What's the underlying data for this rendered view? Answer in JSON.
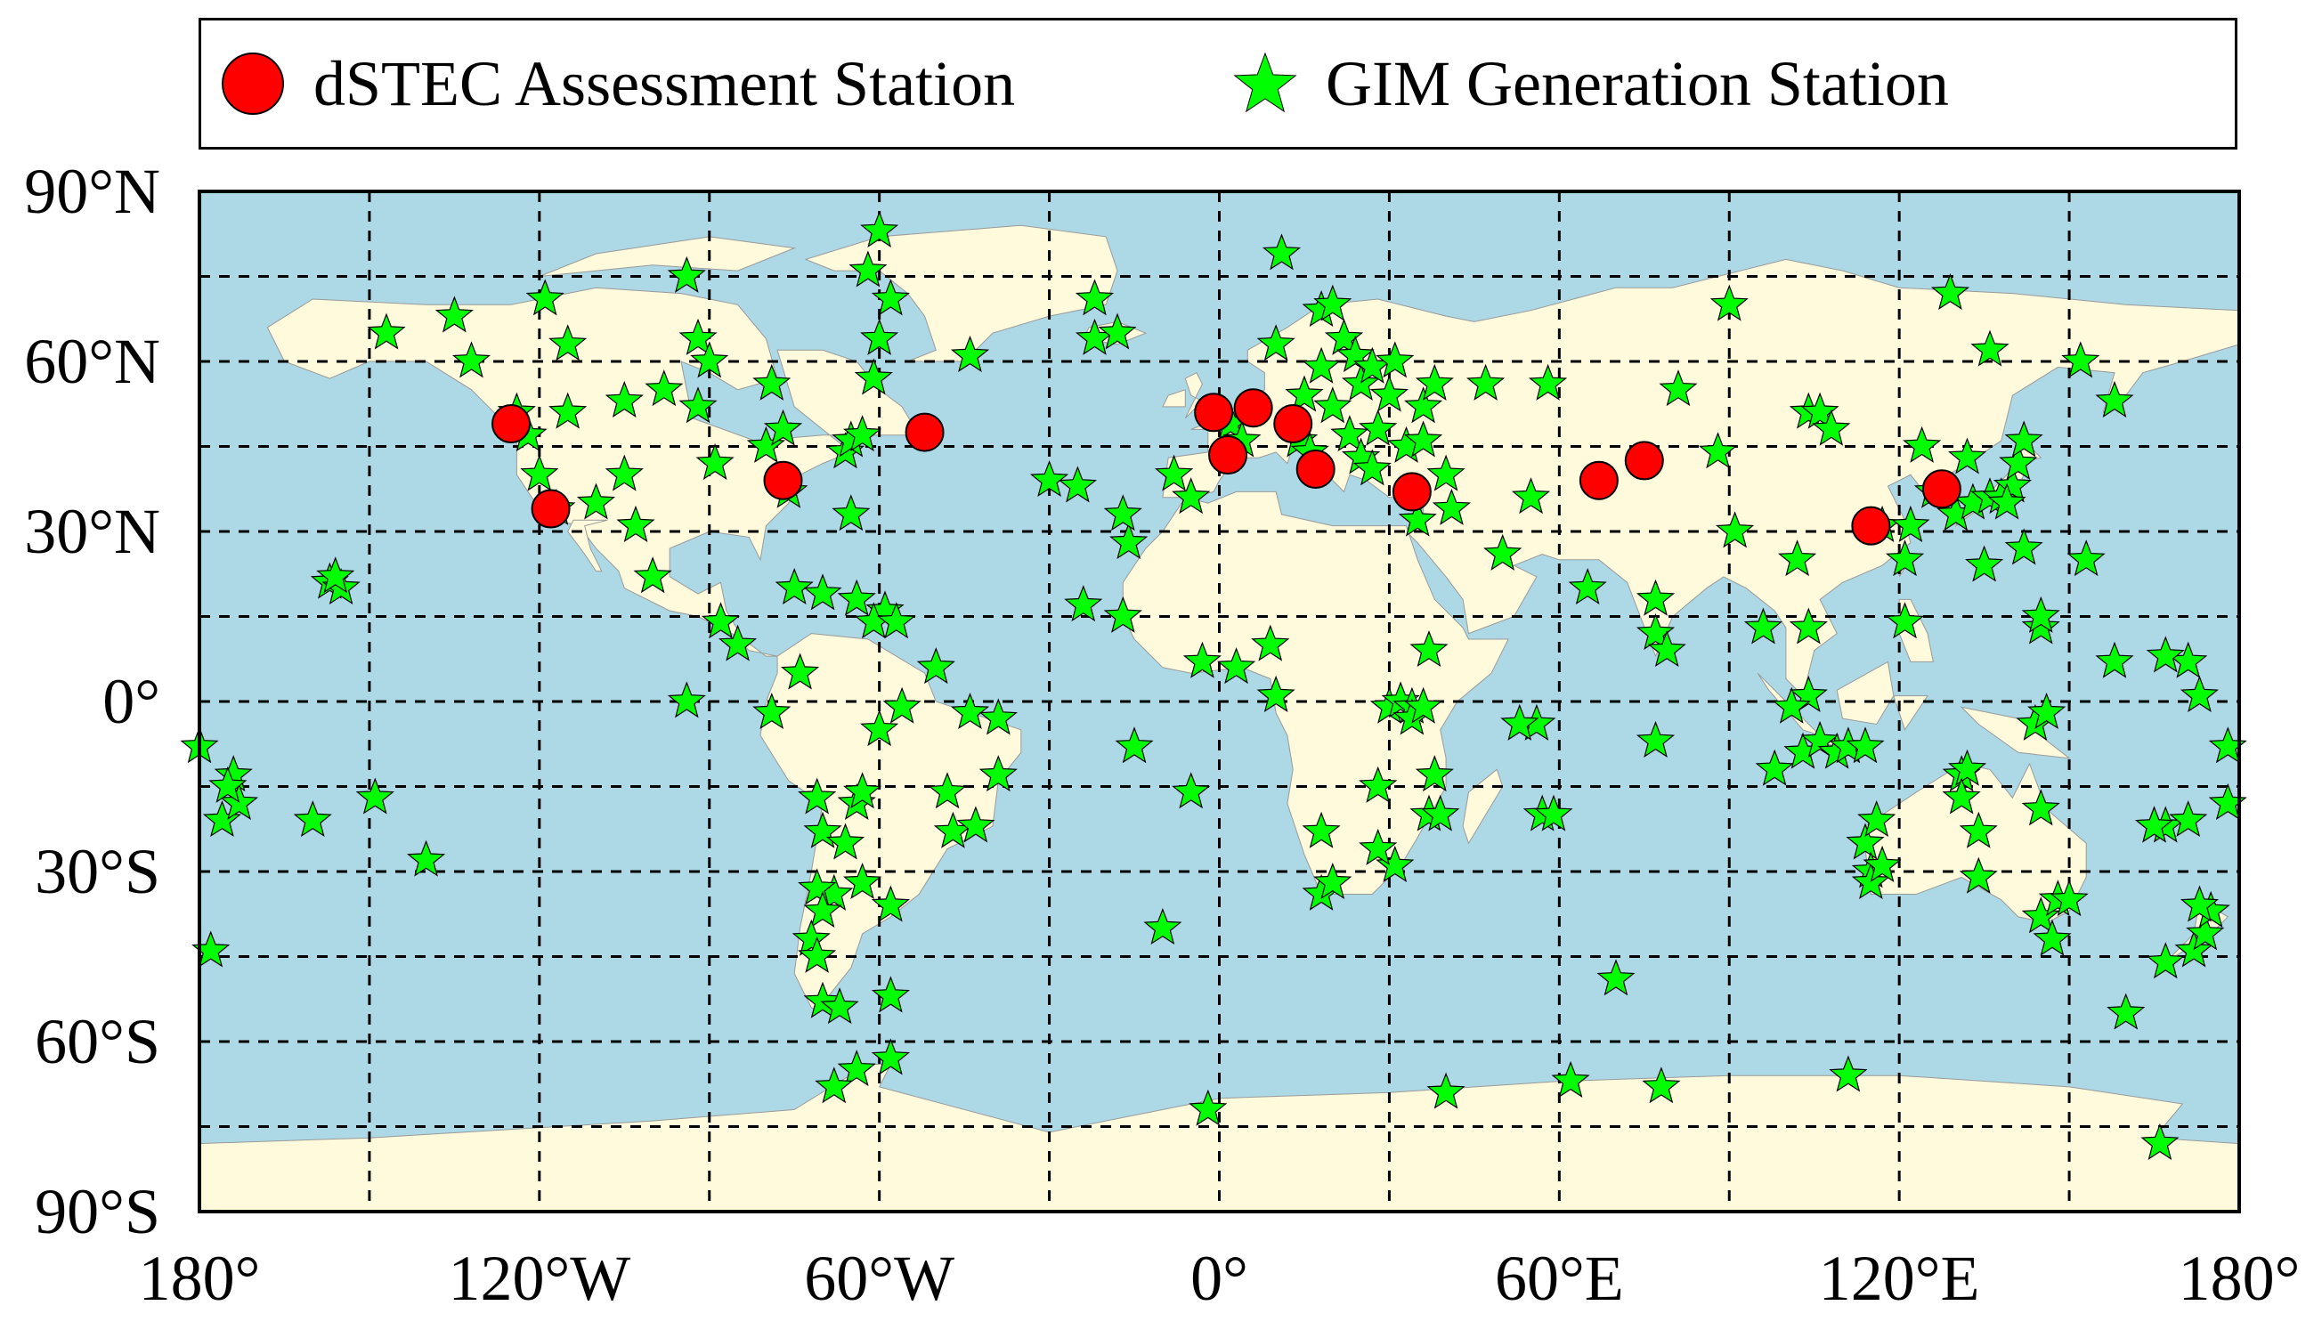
{
  "legend": {
    "assessment_label": "dSTEC Assessment Station",
    "generation_label": "GIM Generation Station",
    "assessment_color": "#ff0000",
    "generation_color": "#00ff00"
  },
  "map": {
    "ocean_color": "#add8e6",
    "land_color": "#fffadc",
    "grid": "dashed",
    "lon_range": [
      -180,
      180
    ],
    "lat_range": [
      -90,
      90
    ],
    "x_ticks": [
      {
        "lon": -180,
        "label": "180°"
      },
      {
        "lon": -120,
        "label": "120°W"
      },
      {
        "lon": -60,
        "label": "60°W"
      },
      {
        "lon": 0,
        "label": "0°"
      },
      {
        "lon": 60,
        "label": "60°E"
      },
      {
        "lon": 120,
        "label": "120°E"
      },
      {
        "lon": 180,
        "label": "180°"
      }
    ],
    "y_ticks": [
      {
        "lat": 90,
        "label": "90°N"
      },
      {
        "lat": 60,
        "label": "60°N"
      },
      {
        "lat": 30,
        "label": "30°N"
      },
      {
        "lat": 0,
        "label": "0°"
      },
      {
        "lat": -30,
        "label": "30°S"
      },
      {
        "lat": -60,
        "label": "60°S"
      },
      {
        "lat": -90,
        "label": "90°S"
      }
    ],
    "grid_lons": [
      -150,
      -120,
      -90,
      -60,
      -30,
      0,
      30,
      60,
      90,
      120,
      150
    ],
    "grid_lats": [
      75,
      60,
      45,
      30,
      15,
      0,
      -15,
      -30,
      -45,
      -60,
      -75
    ]
  },
  "chart_data": {
    "type": "scatter",
    "series": [
      {
        "name": "dSTEC Assessment Station",
        "marker": "circle",
        "points": [
          [
            -125,
            49
          ],
          [
            -118,
            34
          ],
          [
            -77,
            39
          ],
          [
            -52,
            47.5
          ],
          [
            -1,
            51
          ],
          [
            6,
            51.8
          ],
          [
            13,
            49
          ],
          [
            1.5,
            43.5
          ],
          [
            17,
            41
          ],
          [
            34,
            37
          ],
          [
            67,
            39
          ],
          [
            75,
            42.5
          ],
          [
            115,
            31
          ],
          [
            127.5,
            37.5
          ]
        ]
      },
      {
        "name": "GIM Generation Station",
        "marker": "star",
        "points": [
          [
            -180,
            -8
          ],
          [
            -176,
            -21
          ],
          [
            -174,
            -13
          ],
          [
            -173,
            -18
          ],
          [
            -175,
            -15
          ],
          [
            -178,
            -44
          ],
          [
            -157,
            21
          ],
          [
            -155,
            20
          ],
          [
            -156,
            22
          ],
          [
            -160,
            -21
          ],
          [
            -149,
            -17
          ],
          [
            -140,
            -28
          ],
          [
            -147,
            65
          ],
          [
            -135,
            68
          ],
          [
            -132,
            60
          ],
          [
            -124,
            51
          ],
          [
            -122,
            47
          ],
          [
            -120,
            40
          ],
          [
            -117,
            34
          ],
          [
            -119,
            71
          ],
          [
            -115,
            63
          ],
          [
            -115,
            51
          ],
          [
            -110,
            35
          ],
          [
            -105,
            53
          ],
          [
            -105,
            40
          ],
          [
            -103,
            31
          ],
          [
            -100,
            22
          ],
          [
            -98,
            55
          ],
          [
            -94,
            75
          ],
          [
            -92,
            64
          ],
          [
            -92,
            52
          ],
          [
            -90,
            60
          ],
          [
            -89,
            42
          ],
          [
            -88,
            14
          ],
          [
            -85,
            10
          ],
          [
            -94,
            0
          ],
          [
            -80,
            45
          ],
          [
            -79,
            56
          ],
          [
            -77,
            48
          ],
          [
            -76,
            37
          ],
          [
            -75,
            20
          ],
          [
            -74,
            5
          ],
          [
            -79,
            -2
          ],
          [
            -70,
            19
          ],
          [
            -66,
            44
          ],
          [
            -64,
            18
          ],
          [
            -65,
            46
          ],
          [
            -63,
            47
          ],
          [
            -62,
            76
          ],
          [
            -60,
            64
          ],
          [
            -58,
            71
          ],
          [
            -61,
            57
          ],
          [
            -59,
            16
          ],
          [
            -61,
            14
          ],
          [
            -65,
            33
          ],
          [
            -60,
            83
          ],
          [
            -57,
            14
          ],
          [
            -56,
            -1
          ],
          [
            -50,
            6
          ],
          [
            -44,
            -2
          ],
          [
            -39,
            -3
          ],
          [
            -39,
            -13
          ],
          [
            -48,
            -16
          ],
          [
            -47,
            -23
          ],
          [
            -43,
            -22
          ],
          [
            -60,
            -5
          ],
          [
            -64,
            -18
          ],
          [
            -63,
            -16
          ],
          [
            -71,
            -17
          ],
          [
            -70,
            -23
          ],
          [
            -68,
            -34
          ],
          [
            -66,
            -25
          ],
          [
            -63,
            -32
          ],
          [
            -71,
            -33
          ],
          [
            -70,
            -37
          ],
          [
            -72,
            -42
          ],
          [
            -71,
            -45
          ],
          [
            -70,
            -53
          ],
          [
            -67,
            -54
          ],
          [
            -58,
            -36
          ],
          [
            -58,
            -52
          ],
          [
            -64,
            -65
          ],
          [
            -58,
            -63
          ],
          [
            -68,
            -68
          ],
          [
            -44,
            61
          ],
          [
            -22,
            64
          ],
          [
            -18,
            65
          ],
          [
            -22,
            71
          ],
          [
            -30,
            39
          ],
          [
            -25,
            38
          ],
          [
            -16,
            28
          ],
          [
            -17,
            33
          ],
          [
            -24,
            17
          ],
          [
            -17,
            15
          ],
          [
            -15,
            -8
          ],
          [
            -5,
            -16
          ],
          [
            -10,
            -40
          ],
          [
            -3,
            7
          ],
          [
            3,
            6
          ],
          [
            9,
            10
          ],
          [
            10,
            1
          ],
          [
            -2,
            -72
          ],
          [
            -8,
            40
          ],
          [
            -5,
            36
          ],
          [
            2,
            49
          ],
          [
            4,
            46
          ],
          [
            10,
            63
          ],
          [
            11,
            79
          ],
          [
            15,
            54
          ],
          [
            18,
            59
          ],
          [
            18,
            69
          ],
          [
            20,
            70
          ],
          [
            22,
            64
          ],
          [
            24,
            61
          ],
          [
            25,
            56
          ],
          [
            27,
            59
          ],
          [
            28,
            48
          ],
          [
            14,
            46
          ],
          [
            16,
            44
          ],
          [
            20,
            52
          ],
          [
            23,
            47
          ],
          [
            25,
            43
          ],
          [
            27,
            41
          ],
          [
            31,
            60
          ],
          [
            30,
            54
          ],
          [
            33,
            45
          ],
          [
            36,
            52
          ],
          [
            38,
            56
          ],
          [
            36,
            46
          ],
          [
            40,
            40
          ],
          [
            35,
            32
          ],
          [
            31,
            -29
          ],
          [
            28,
            -26
          ],
          [
            30,
            -1
          ],
          [
            32,
            0
          ],
          [
            34,
            -1
          ],
          [
            37,
            9
          ],
          [
            34,
            -3
          ],
          [
            36,
            -1
          ],
          [
            38,
            -13
          ],
          [
            28,
            -15
          ],
          [
            18,
            -23
          ],
          [
            18,
            -34
          ],
          [
            20,
            -32
          ],
          [
            37,
            -20
          ],
          [
            39,
            -20
          ],
          [
            41,
            34
          ],
          [
            47,
            56
          ],
          [
            50,
            26
          ],
          [
            55,
            36
          ],
          [
            56,
            -4
          ],
          [
            57,
            -20
          ],
          [
            59,
            -20
          ],
          [
            53,
            -4
          ],
          [
            65,
            20
          ],
          [
            58,
            56
          ],
          [
            77,
            -7
          ],
          [
            70,
            -49
          ],
          [
            78,
            -68
          ],
          [
            62,
            -67
          ],
          [
            40,
            -69
          ],
          [
            81,
            55
          ],
          [
            90,
            70
          ],
          [
            88,
            44
          ],
          [
            77,
            18
          ],
          [
            77,
            12
          ],
          [
            79,
            9
          ],
          [
            91,
            30
          ],
          [
            96,
            13
          ],
          [
            98,
            -12
          ],
          [
            104,
            51
          ],
          [
            106,
            51
          ],
          [
            108,
            48
          ],
          [
            102,
            25
          ],
          [
            104,
            13
          ],
          [
            104,
            1
          ],
          [
            101,
            -1
          ],
          [
            103,
            -9
          ],
          [
            106,
            -7
          ],
          [
            109,
            -9
          ],
          [
            111,
            -8
          ],
          [
            114,
            -8
          ],
          [
            117,
            31
          ],
          [
            114,
            -25
          ],
          [
            115,
            -30
          ],
          [
            115,
            -32
          ],
          [
            117,
            -29
          ],
          [
            116,
            -21
          ],
          [
            111,
            -66
          ],
          [
            121,
            14
          ],
          [
            121,
            25
          ],
          [
            122,
            31
          ],
          [
            124,
            45
          ],
          [
            126,
            37
          ],
          [
            130,
            33
          ],
          [
            132,
            43
          ],
          [
            133,
            35
          ],
          [
            136,
            36
          ],
          [
            138,
            36
          ],
          [
            140,
            38
          ],
          [
            141,
            42
          ],
          [
            142,
            46
          ],
          [
            139,
            35
          ],
          [
            135,
            24
          ],
          [
            136,
            62
          ],
          [
            129,
            72
          ],
          [
            131,
            -13
          ],
          [
            132,
            -12
          ],
          [
            134,
            -23
          ],
          [
            134,
            -31
          ],
          [
            131,
            -17
          ],
          [
            145,
            -38
          ],
          [
            147,
            -42
          ],
          [
            148,
            -35
          ],
          [
            150,
            -35
          ],
          [
            144,
            -4
          ],
          [
            145,
            -19
          ],
          [
            146,
            -2
          ],
          [
            145,
            13
          ],
          [
            145,
            15
          ],
          [
            142,
            27
          ],
          [
            153,
            25
          ],
          [
            158,
            7
          ],
          [
            152,
            60
          ],
          [
            158,
            53
          ],
          [
            165,
            -22
          ],
          [
            167,
            -22
          ],
          [
            172,
            -44
          ],
          [
            174,
            -41
          ],
          [
            175,
            -37
          ],
          [
            173,
            -36
          ],
          [
            178,
            -18
          ],
          [
            167,
            -46
          ],
          [
            171,
            -21
          ],
          [
            171,
            7
          ],
          [
            173,
            1
          ],
          [
            167,
            8
          ],
          [
            178,
            -8
          ],
          [
            166,
            -78
          ],
          [
            160,
            -55
          ],
          [
            165,
            -22
          ]
        ]
      }
    ]
  }
}
